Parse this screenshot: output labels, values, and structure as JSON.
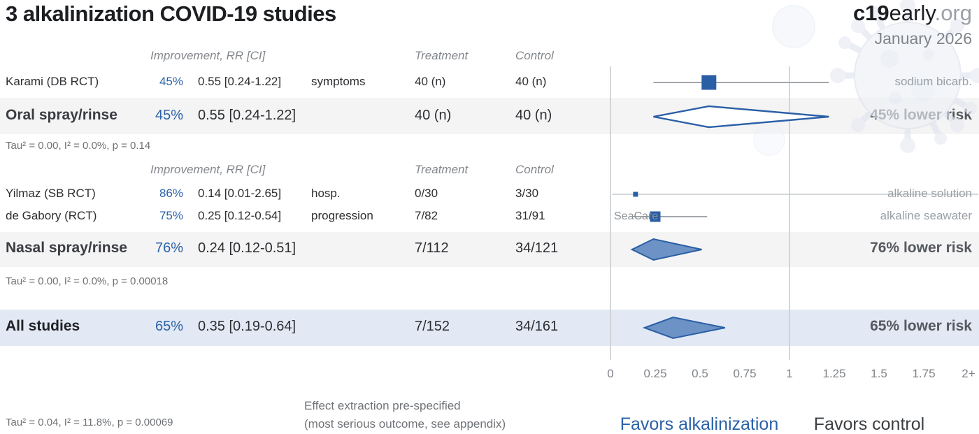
{
  "header": {
    "title": "3 alkalinization COVID-19 studies",
    "brand_bold": "c19",
    "brand_regular": "early",
    "brand_suffix": ".org",
    "date": "January 2026"
  },
  "columns": {
    "improvement": "Improvement, RR [CI]",
    "treatment": "Treatment",
    "control": "Control"
  },
  "groups": [
    {
      "studies": [
        {
          "name": "Karami (DB RCT)",
          "pct": "45%",
          "rr": "0.55 [0.24-1.22]",
          "outcome": "symptoms",
          "treatment": "40 (n)",
          "control": "40 (n)",
          "tag": "sodium bicarb."
        }
      ],
      "summary": {
        "name": "Oral spray/rinse",
        "pct": "45%",
        "rr": "0.55 [0.24-1.22]",
        "treatment": "40 (n)",
        "control": "40 (n)",
        "result": "45% lower risk"
      },
      "tau": "Tau² = 0.00, I² = 0.0%, p = 0.14"
    },
    {
      "studies": [
        {
          "name": "Yilmaz (SB RCT)",
          "pct": "86%",
          "rr": "0.14 [0.01-2.65]",
          "outcome": "hosp.",
          "treatment": "0/30",
          "control": "3/30",
          "tag": "alkaline solution"
        },
        {
          "name": "de Gabory (RCT)",
          "pct": "75%",
          "rr": "0.25 [0.12-0.54]",
          "outcome": "progression",
          "treatment": "7/82",
          "control": "31/91",
          "tag": "alkaline seawater",
          "brand": "SeaCare"
        }
      ],
      "summary": {
        "name": "Nasal spray/rinse",
        "pct": "76%",
        "rr": "0.24 [0.12-0.51]",
        "treatment": "7/112",
        "control": "34/121",
        "result": "76% lower risk"
      },
      "tau": "Tau² = 0.00, I² = 0.0%, p = 0.00018"
    }
  ],
  "all_studies": {
    "name": "All studies",
    "pct": "65%",
    "rr": "0.35 [0.19-0.64]",
    "treatment": "7/152",
    "control": "34/161",
    "result": "65% lower risk"
  },
  "footer": {
    "tau": "Tau² = 0.04, I² = 11.8%, p = 0.00069",
    "note_line1": "Effect extraction pre-specified",
    "note_line2": "(most serious outcome, see appendix)",
    "favors_left": "Favors alkalinization",
    "favors_right": "Favors control"
  },
  "colors": {
    "accent_blue": "#2a5fa6",
    "diamond_fill": "#6d92c5",
    "ci_line": "#a2a6ab",
    "ci_line_light": "#c6cace",
    "reference_line": "#c9cdd1"
  },
  "chart_data": {
    "type": "forest",
    "title": "3 alkalinization COVID-19 studies",
    "x_axis": {
      "ticks": [
        {
          "label": "0",
          "value": 0
        },
        {
          "label": "0.25",
          "value": 0.25
        },
        {
          "label": "0.5",
          "value": 0.5
        },
        {
          "label": "0.75",
          "value": 0.75
        },
        {
          "label": "1",
          "value": 1
        },
        {
          "label": "1.25",
          "value": 1.25
        },
        {
          "label": "1.5",
          "value": 1.5
        },
        {
          "label": "1.75",
          "value": 1.75
        },
        {
          "label": "2+",
          "value": 2
        }
      ],
      "range": [
        0,
        2.05
      ],
      "reference_lines": [
        0,
        1
      ]
    },
    "points": [
      {
        "id": "karami",
        "label": "Karami (DB RCT)",
        "rr": 0.55,
        "ci": [
          0.24,
          1.22
        ],
        "marker": 21,
        "weight_style": "normal"
      },
      {
        "id": "yilmaz",
        "label": "Yilmaz (SB RCT)",
        "rr": 0.14,
        "ci": [
          0.01,
          2.65
        ],
        "marker": 7,
        "weight_style": "light"
      },
      {
        "id": "degabory",
        "label": "de Gabory (RCT)",
        "rr": 0.25,
        "ci": [
          0.12,
          0.54
        ],
        "marker": 15,
        "weight_style": "normal"
      }
    ],
    "diamonds": [
      {
        "id": "oral",
        "label": "Oral spray/rinse",
        "rr": 0.55,
        "ci": [
          0.24,
          1.22
        ],
        "filled": false
      },
      {
        "id": "nasal",
        "label": "Nasal spray/rinse",
        "rr": 0.24,
        "ci": [
          0.12,
          0.51
        ],
        "filled": true
      },
      {
        "id": "all",
        "label": "All studies",
        "rr": 0.35,
        "ci": [
          0.19,
          0.64
        ],
        "filled": true
      }
    ],
    "favors": {
      "left": "Favors alkalinization",
      "right": "Favors control"
    }
  }
}
